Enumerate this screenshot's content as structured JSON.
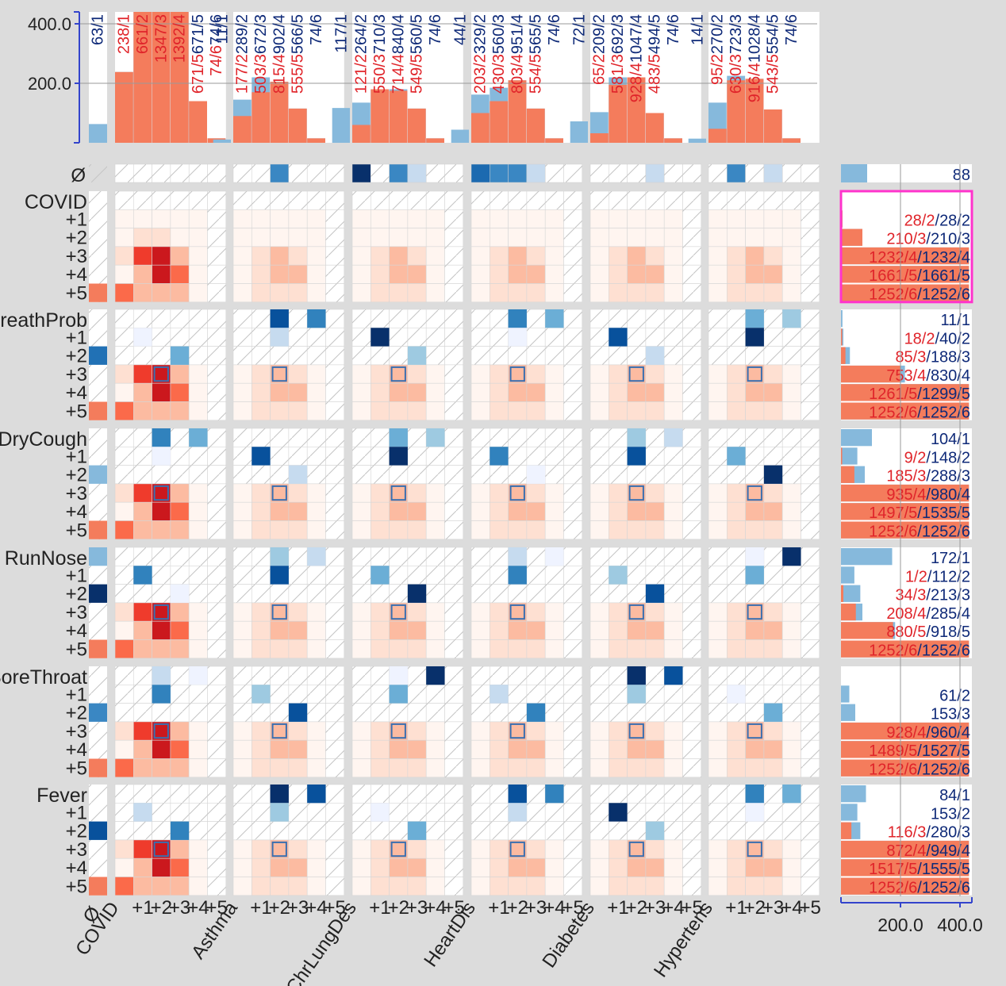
{
  "chart_data": {
    "type": "heatmap",
    "title": "",
    "column_groups": [
      {
        "name": "COVID",
        "levels": [
          "+1",
          "+2",
          "+3",
          "+4",
          "+5"
        ]
      },
      {
        "name": "Asthma",
        "levels": [
          "+1",
          "+2",
          "+3",
          "+4",
          "+5"
        ]
      },
      {
        "name": "ChrLungDes",
        "levels": [
          "+1",
          "+2",
          "+3",
          "+4",
          "+5"
        ]
      },
      {
        "name": "HeartDis",
        "levels": [
          "+1",
          "+2",
          "+3",
          "+4",
          "+5"
        ]
      },
      {
        "name": "Diabetes",
        "levels": [
          "+1",
          "+2",
          "+3",
          "+4",
          "+5"
        ]
      },
      {
        "name": "Hypertens",
        "levels": [
          "+1",
          "+2",
          "+3",
          "+4",
          "+5"
        ]
      }
    ],
    "null_label": "Ø",
    "row_groups": [
      {
        "name": "COVID",
        "levels": [
          "+1",
          "+2",
          "+3",
          "+4",
          "+5"
        ]
      },
      {
        "name": "BreathProb",
        "levels": [
          "+1",
          "+2",
          "+3",
          "+4",
          "+5"
        ]
      },
      {
        "name": "DryCough",
        "levels": [
          "+1",
          "+2",
          "+3",
          "+4",
          "+5"
        ]
      },
      {
        "name": "RunNose",
        "levels": [
          "+1",
          "+2",
          "+3",
          "+4",
          "+5"
        ]
      },
      {
        "name": "SoreThroat",
        "levels": [
          "+1",
          "+2",
          "+3",
          "+4",
          "+5"
        ]
      },
      {
        "name": "Fever",
        "levels": [
          "+1",
          "+2",
          "+3",
          "+4",
          "+5"
        ]
      }
    ],
    "top_axis": {
      "ticks": [
        "200.0",
        "400.0"
      ],
      "tick_values": [
        200,
        400
      ],
      "max": 450
    },
    "right_axis": {
      "ticks": [
        "200.0",
        "400.0"
      ],
      "tick_values": [
        200,
        400
      ],
      "max": 450
    },
    "top_histogram": [
      {
        "null": {
          "label": "63/1",
          "value": 63
        },
        "bins": [
          {
            "label": "238/1",
            "red": 238,
            "total": 238
          },
          {
            "label": "661/2",
            "red": 661,
            "total": 661
          },
          {
            "label": "1347/3",
            "red": 1347,
            "total": 1347
          },
          {
            "label": "1392/4",
            "red": 1392,
            "total": 1392
          },
          {
            "label": "671/5",
            "total_label": "671/5",
            "red": 140,
            "total": 140
          },
          {
            "label": "74/6",
            "total_label": "74/6",
            "red": 15,
            "total": 15
          }
        ]
      },
      {
        "null": {
          "label": "11/1",
          "value": 11
        },
        "bins": [
          {
            "label": "177/2",
            "total_label": "289/2",
            "red": 90,
            "total": 145
          },
          {
            "label": "503/3",
            "total_label": "672/3",
            "red": 170,
            "total": 220
          },
          {
            "label": "815/4",
            "total_label": "902/4",
            "red": 205,
            "total": 205
          },
          {
            "label": "555/5",
            "total_label": "566/5",
            "red": 115,
            "total": 115
          },
          {
            "label": "",
            "total_label": "74/6",
            "red": 15,
            "total": 15
          }
        ]
      },
      {
        "null": {
          "label": "117/1",
          "value": 117
        },
        "bins": [
          {
            "label": "121/2",
            "total_label": "264/2",
            "red": 60,
            "total": 135
          },
          {
            "label": "550/3",
            "total_label": "710/3",
            "red": 180,
            "total": 180
          },
          {
            "label": "714/4",
            "total_label": "840/4",
            "red": 175,
            "total": 180
          },
          {
            "label": "549/5",
            "total_label": "560/5",
            "red": 115,
            "total": 115
          },
          {
            "label": "",
            "total_label": "74/6",
            "red": 15,
            "total": 15
          }
        ]
      },
      {
        "null": {
          "label": "44/1",
          "value": 44
        },
        "bins": [
          {
            "label": "203/2",
            "total_label": "329/2",
            "red": 100,
            "total": 162
          },
          {
            "label": "430/3",
            "total_label": "560/3",
            "red": 140,
            "total": 185
          },
          {
            "label": "803/4",
            "total_label": "951/4",
            "red": 210,
            "total": 210
          },
          {
            "label": "554/5",
            "total_label": "565/5",
            "red": 115,
            "total": 115
          },
          {
            "label": "",
            "total_label": "74/6",
            "red": 15,
            "total": 15
          }
        ]
      },
      {
        "null": {
          "label": "72/1",
          "value": 72
        },
        "bins": [
          {
            "label": "65/2",
            "total_label": "209/2",
            "red": 32,
            "total": 103
          },
          {
            "label": "581/3",
            "total_label": "692/3",
            "red": 195,
            "total": 220
          },
          {
            "label": "928/4",
            "total_label": "1047/4",
            "red": 220,
            "total": 220
          },
          {
            "label": "483/5",
            "total_label": "494/5",
            "red": 100,
            "total": 100
          },
          {
            "label": "",
            "total_label": "74/6",
            "red": 15,
            "total": 15
          }
        ]
      },
      {
        "null": {
          "label": "14/1",
          "value": 14
        },
        "bins": [
          {
            "label": "95/2",
            "total_label": "270/2",
            "red": 47,
            "total": 135
          },
          {
            "label": "630/3",
            "total_label": "723/3",
            "red": 210,
            "total": 225
          },
          {
            "label": "916/4",
            "total_label": "1028/4",
            "red": 215,
            "total": 215
          },
          {
            "label": "543/5",
            "total_label": "554/5",
            "red": 112,
            "total": 112
          },
          {
            "label": "",
            "total_label": "74/6",
            "red": 15,
            "total": 15
          }
        ]
      }
    ],
    "right_histogram": [
      {
        "null": {
          "label": "88",
          "value": 88
        }
      },
      {
        "bins": [
          {
            "red_label": "28/2",
            "total_label": "28/2",
            "red": 5,
            "total": 5
          },
          {
            "red_label": "210/3",
            "total_label": "210/3",
            "red": 72,
            "total": 72
          },
          {
            "red_label": "1232/4",
            "total_label": "1232/4",
            "red": 430,
            "total": 430
          },
          {
            "red_label": "1661/5",
            "total_label": "1661/5",
            "red": 430,
            "total": 430
          },
          {
            "red_label": "1252/6",
            "total_label": "1252/6",
            "red": 430,
            "total": 430
          }
        ]
      },
      {
        "bins": [
          {
            "red_label": "",
            "total_label": "11/1",
            "red": 0,
            "total": 5
          },
          {
            "red_label": "18/2",
            "total_label": "40/2",
            "red": 4,
            "total": 8
          },
          {
            "red_label": "85/3",
            "total_label": "188/3",
            "red": 15,
            "total": 30
          },
          {
            "red_label": "753/4",
            "total_label": "830/4",
            "red": 200,
            "total": 215
          },
          {
            "red_label": "1261/5",
            "total_label": "1299/5",
            "red": 430,
            "total": 430
          },
          {
            "red_label": "1252/6",
            "total_label": "1252/6",
            "red": 430,
            "total": 430
          }
        ]
      },
      {
        "bins": [
          {
            "red_label": "",
            "total_label": "104/1",
            "red": 0,
            "total": 104
          },
          {
            "red_label": "9/2",
            "total_label": "148/2",
            "red": 4,
            "total": 55
          },
          {
            "red_label": "185/3",
            "total_label": "288/3",
            "red": 45,
            "total": 80
          },
          {
            "red_label": "935/4",
            "total_label": "980/4",
            "red": 430,
            "total": 430
          },
          {
            "red_label": "1497/5",
            "total_label": "1535/5",
            "red": 430,
            "total": 430
          },
          {
            "red_label": "1252/6",
            "total_label": "1252/6",
            "red": 430,
            "total": 430
          }
        ]
      },
      {
        "bins": [
          {
            "red_label": "",
            "total_label": "172/1",
            "red": 0,
            "total": 172
          },
          {
            "red_label": "1/2",
            "total_label": "112/2",
            "red": 0,
            "total": 45
          },
          {
            "red_label": "34/3",
            "total_label": "213/3",
            "red": 8,
            "total": 65
          },
          {
            "red_label": "208/4",
            "total_label": "285/4",
            "red": 50,
            "total": 72
          },
          {
            "red_label": "880/5",
            "total_label": "918/5",
            "red": 175,
            "total": 182
          },
          {
            "red_label": "1252/6",
            "total_label": "1252/6",
            "red": 430,
            "total": 430
          }
        ]
      },
      {
        "bins": [
          {
            "red_label": "",
            "total_label": "61/2",
            "red": 0,
            "total": 28
          },
          {
            "red_label": "",
            "total_label": "153/3",
            "red": 0,
            "total": 48
          },
          {
            "red_label": "928/4",
            "total_label": "960/4",
            "red": 430,
            "total": 430
          },
          {
            "red_label": "1489/5",
            "total_label": "1527/5",
            "red": 430,
            "total": 430
          },
          {
            "red_label": "1252/6",
            "total_label": "1252/6",
            "red": 430,
            "total": 430
          }
        ]
      },
      {
        "bins": [
          {
            "red_label": "",
            "total_label": "84/1",
            "red": 0,
            "total": 84
          },
          {
            "red_label": "",
            "total_label": "153/2",
            "red": 0,
            "total": 55
          },
          {
            "red_label": "116/3",
            "total_label": "280/3",
            "red": 35,
            "total": 65
          },
          {
            "red_label": "872/4",
            "total_label": "949/4",
            "red": 430,
            "total": 430
          },
          {
            "red_label": "1517/5",
            "total_label": "1555/5",
            "red": 430,
            "total": 430
          },
          {
            "red_label": "1252/6",
            "total_label": "1252/6",
            "red": 430,
            "total": 430
          }
        ]
      }
    ],
    "colors": {
      "red_bar": "#f47c5c",
      "blue_bar": "#86b9dc",
      "red_text": "#e0242a",
      "blue_text": "#0f2a78",
      "highlight": "#ff33cc",
      "axis": "#3344cc"
    }
  }
}
